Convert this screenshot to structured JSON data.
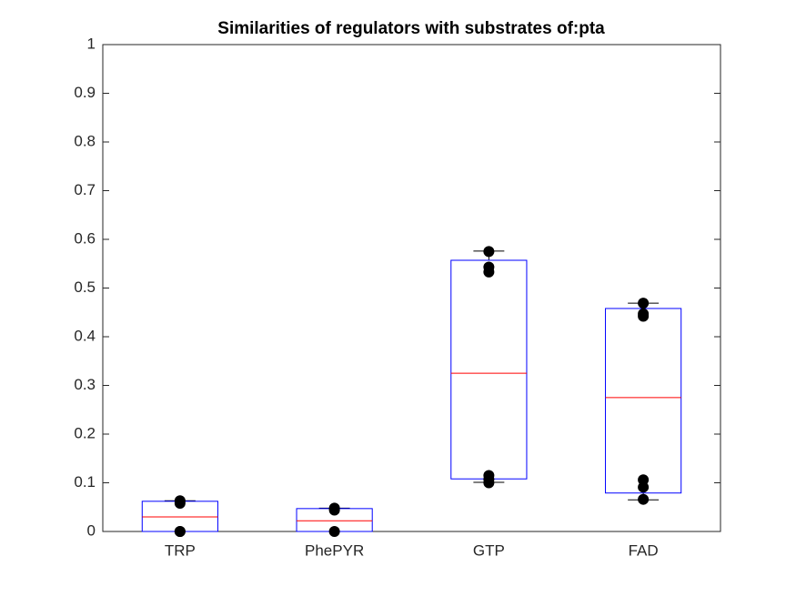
{
  "chart_data": {
    "type": "box",
    "title": "Similarities of regulators with substrates of:pta",
    "categories": [
      "TRP",
      "PhePYR",
      "GTP",
      "FAD"
    ],
    "boxes": [
      {
        "low": 0,
        "q1": 0,
        "median": 0.03,
        "q3": 0.062,
        "high": 0.063,
        "points": [
          0.063,
          0.058,
          0,
          0
        ]
      },
      {
        "low": 0,
        "q1": 0,
        "median": 0.022,
        "q3": 0.047,
        "high": 0.048,
        "points": [
          0.048,
          0.044,
          0
        ]
      },
      {
        "low": 0.101,
        "q1": 0.108,
        "median": 0.325,
        "q3": 0.557,
        "high": 0.576,
        "points": [
          0.575,
          0.543,
          0.533,
          0.115,
          0.107,
          0.1
        ]
      },
      {
        "low": 0.065,
        "q1": 0.079,
        "median": 0.275,
        "q3": 0.458,
        "high": 0.469,
        "points": [
          0.469,
          0.447,
          0.442,
          0.106,
          0.091,
          0.066
        ]
      }
    ],
    "box_color": "#0000ff",
    "median_color": "#ff0000",
    "whisker_color": "#000000",
    "point_color": "#000000",
    "ylim": [
      0,
      1
    ],
    "yticks": [
      0,
      0.1,
      0.2,
      0.3,
      0.4,
      0.5,
      0.6,
      0.7,
      0.8,
      0.9,
      1
    ]
  }
}
